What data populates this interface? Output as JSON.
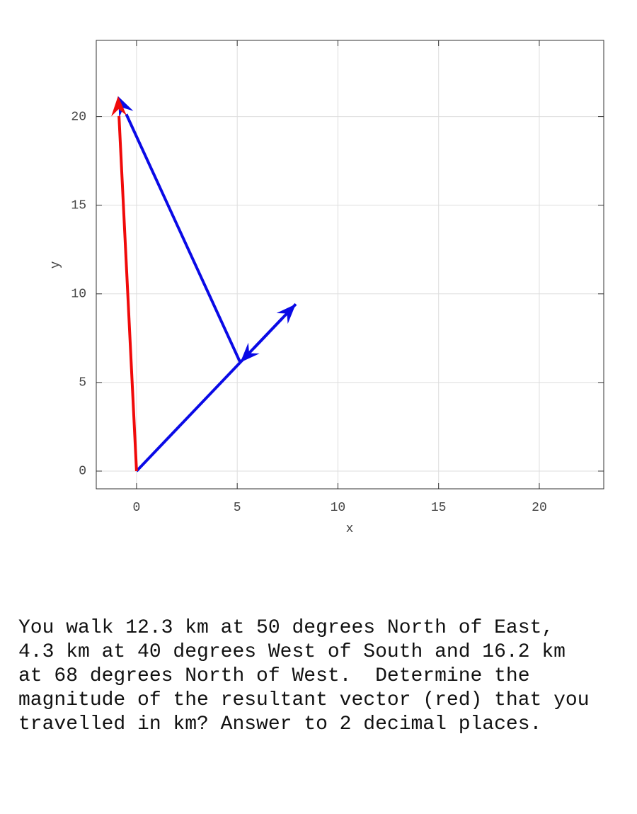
{
  "chart_data": {
    "type": "vector",
    "x_label": "x",
    "y_label": "y",
    "xlim": [
      -2,
      23.2
    ],
    "ylim": [
      -1,
      24.3
    ],
    "xticks": [
      0,
      5,
      10,
      15,
      20
    ],
    "yticks": [
      0,
      5,
      10,
      15,
      20
    ],
    "grid": true,
    "vectors": [
      {
        "x0": 0,
        "y0": 0,
        "x1": 7.91,
        "y1": 9.42,
        "color": "#0a0ae6"
      },
      {
        "x0": 7.91,
        "y0": 9.42,
        "x1": 5.15,
        "y1": 6.13,
        "color": "#0a0ae6"
      },
      {
        "x0": 5.15,
        "y0": 6.13,
        "x1": -0.92,
        "y1": 21.15,
        "color": "#0a0ae6"
      },
      {
        "x0": 0,
        "y0": 0,
        "x1": -0.92,
        "y1": 21.15,
        "color": "#f00a0a"
      }
    ]
  },
  "question": {
    "lines": [
      "You walk 12.3 km at 50 degrees North of East,",
      "4.3 km at 40 degrees West of South and 16.2 km",
      "at 68 degrees North of West.  Determine the",
      "magnitude of the resultant vector (red) that you",
      "travelled in km? Answer to 2 decimal places."
    ]
  }
}
